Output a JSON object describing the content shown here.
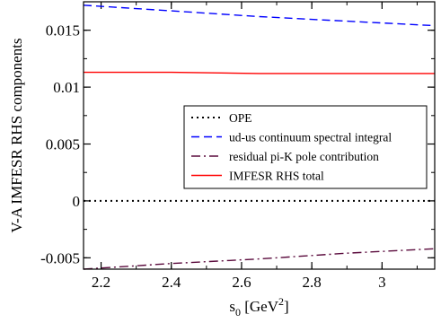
{
  "chart_data": {
    "type": "line",
    "xlabel": "s",
    "xlabel_sub": "0",
    "xlabel_unit_open": " [GeV",
    "xlabel_unit_sup": "2",
    "xlabel_unit_close": "]",
    "ylabel": "V-A IMFESR RHS components",
    "xlim": [
      2.15,
      3.15
    ],
    "ylim": [
      -0.006,
      0.0175
    ],
    "xticks": [
      2.2,
      2.4,
      2.6,
      2.8,
      3.0
    ],
    "xtick_labels": [
      "2.2",
      "2.4",
      "2.6",
      "2.8",
      "3"
    ],
    "yticks": [
      -0.005,
      0,
      0.005,
      0.01,
      0.015
    ],
    "ytick_labels": [
      "-0.005",
      "0",
      "0.005",
      "0.01",
      "0.015"
    ],
    "legend_position": "center-right",
    "series": [
      {
        "name": "OPE",
        "color": "#000000",
        "dash": "dotted",
        "x": [
          2.15,
          2.4,
          2.65,
          2.9,
          3.15
        ],
        "y": [
          0.0,
          0.0,
          0.0,
          0.0,
          0.0
        ]
      },
      {
        "name": "ud-us continuum spectral integral",
        "color": "#0000ff",
        "dash": "dashed",
        "x": [
          2.15,
          2.4,
          2.65,
          2.9,
          3.15
        ],
        "y": [
          0.0172,
          0.0167,
          0.0162,
          0.0158,
          0.0154
        ]
      },
      {
        "name": "residual pi-K pole contribution",
        "color": "#5a0a3c",
        "dash": "dashdot",
        "x": [
          2.15,
          2.4,
          2.65,
          2.9,
          3.15
        ],
        "y": [
          -0.006,
          -0.0055,
          -0.0051,
          -0.0046,
          -0.0042
        ]
      },
      {
        "name": "IMFESR RHS total",
        "color": "#ff0000",
        "dash": "solid",
        "x": [
          2.15,
          2.4,
          2.65,
          2.9,
          3.15
        ],
        "y": [
          0.0113,
          0.0113,
          0.0112,
          0.0112,
          0.0112
        ]
      }
    ]
  }
}
